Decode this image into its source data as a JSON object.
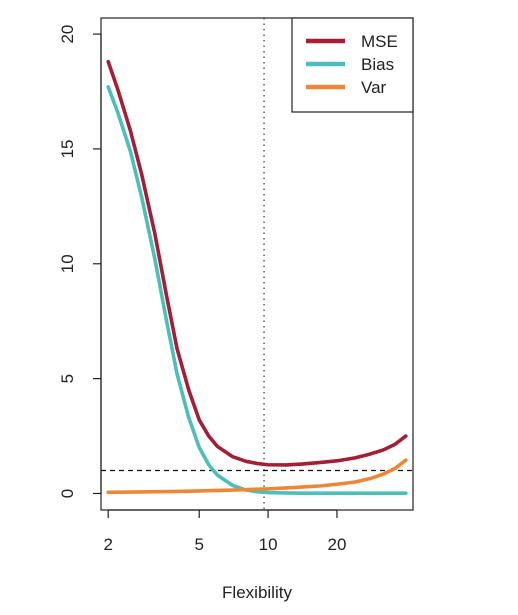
{
  "chart_data": {
    "type": "line",
    "xlabel": "Flexibility",
    "ylabel": "",
    "x_scale": "log",
    "xlim": [
      1.86,
      43
    ],
    "ylim": [
      -0.72,
      20.7
    ],
    "x_ticks": [
      2,
      5,
      10,
      20
    ],
    "x_tick_labels": [
      "2",
      "5",
      "10",
      "20"
    ],
    "y_ticks": [
      0,
      5,
      10,
      15,
      20
    ],
    "y_tick_labels": [
      "0",
      "5",
      "10",
      "15",
      "20"
    ],
    "legend_position": "top-right",
    "reference_lines": {
      "horizontal_dashed_y": 1,
      "vertical_dotted_x": 9.6
    },
    "series": [
      {
        "name": "MSE",
        "color": "#a41f35",
        "x": [
          2,
          2.2,
          2.5,
          2.8,
          3.2,
          3.6,
          4,
          4.5,
          5,
          5.5,
          6,
          7,
          8,
          9,
          10,
          12,
          14,
          17,
          20,
          24,
          28,
          32,
          36,
          40
        ],
        "y": [
          18.8,
          17.6,
          15.8,
          13.9,
          11.3,
          8.6,
          6.3,
          4.5,
          3.2,
          2.5,
          2.05,
          1.6,
          1.4,
          1.3,
          1.25,
          1.24,
          1.28,
          1.35,
          1.42,
          1.55,
          1.72,
          1.9,
          2.15,
          2.5
        ]
      },
      {
        "name": "Bias",
        "color": "#4bbfb8",
        "x": [
          2,
          2.2,
          2.5,
          2.8,
          3.2,
          3.6,
          4,
          4.5,
          5,
          5.5,
          6,
          7,
          8,
          9,
          10,
          12,
          14,
          17,
          20,
          24,
          28,
          32,
          36,
          40
        ],
        "y": [
          17.7,
          16.6,
          14.9,
          12.9,
          10.2,
          7.5,
          5.2,
          3.3,
          2.0,
          1.25,
          0.8,
          0.35,
          0.15,
          0.07,
          0.04,
          0.02,
          0.01,
          0.01,
          0.01,
          0.01,
          0.01,
          0.01,
          0.01,
          0.01
        ]
      },
      {
        "name": "Var",
        "color": "#ef8636",
        "x": [
          2,
          2.5,
          3,
          4,
          5,
          6,
          7,
          8,
          10,
          12,
          14,
          17,
          20,
          24,
          28,
          32,
          36,
          40
        ],
        "y": [
          0.05,
          0.06,
          0.07,
          0.09,
          0.11,
          0.13,
          0.15,
          0.17,
          0.2,
          0.24,
          0.28,
          0.33,
          0.4,
          0.5,
          0.65,
          0.85,
          1.1,
          1.45
        ]
      }
    ]
  }
}
